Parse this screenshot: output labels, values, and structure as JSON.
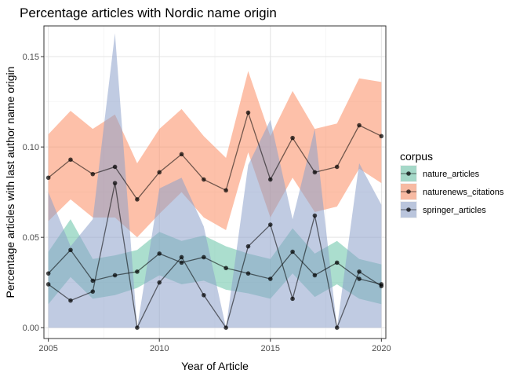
{
  "chart_data": {
    "type": "line",
    "title": "Percentage articles with Nordic name origin",
    "xlabel": "Year of Article",
    "ylabel": "Percentage articles with last author name origin",
    "xlim": [
      2004.8,
      2020.2
    ],
    "ylim": [
      -0.006,
      0.167
    ],
    "x_ticks": [
      2005,
      2010,
      2015,
      2020
    ],
    "x_tick_labels": [
      "2005",
      "2010",
      "2015",
      "2020"
    ],
    "y_ticks": [
      0.0,
      0.05,
      0.1,
      0.15
    ],
    "y_tick_labels": [
      "0.00",
      "0.05",
      "0.10",
      "0.15"
    ],
    "grid": true,
    "legend": {
      "title": "corpus",
      "position": "right"
    },
    "x": [
      2005,
      2006,
      2007,
      2008,
      2009,
      2010,
      2011,
      2012,
      2013,
      2014,
      2015,
      2016,
      2017,
      2018,
      2019,
      2020
    ],
    "series": [
      {
        "name": "nature_articles",
        "color": "#66c2a5",
        "values": [
          0.03,
          0.043,
          0.026,
          0.029,
          0.031,
          0.041,
          0.036,
          0.039,
          0.033,
          0.03,
          0.027,
          0.042,
          0.029,
          0.036,
          0.027,
          0.024
        ],
        "lower": [
          0.013,
          0.028,
          0.016,
          0.018,
          0.022,
          0.029,
          0.024,
          0.026,
          0.021,
          0.019,
          0.016,
          0.03,
          0.017,
          0.024,
          0.016,
          0.013
        ],
        "upper": [
          0.042,
          0.06,
          0.038,
          0.04,
          0.043,
          0.053,
          0.048,
          0.051,
          0.045,
          0.041,
          0.038,
          0.055,
          0.041,
          0.048,
          0.038,
          0.035
        ]
      },
      {
        "name": "naturenews_citations",
        "color": "#fc8d62",
        "values": [
          0.083,
          0.093,
          0.085,
          0.089,
          0.071,
          0.086,
          0.096,
          0.082,
          0.076,
          0.119,
          0.082,
          0.105,
          0.086,
          0.089,
          0.112,
          0.106
        ],
        "lower": [
          0.059,
          0.071,
          0.061,
          0.061,
          0.05,
          0.063,
          0.075,
          0.061,
          0.054,
          0.097,
          0.061,
          0.083,
          0.064,
          0.067,
          0.088,
          0.08
        ],
        "upper": [
          0.107,
          0.12,
          0.11,
          0.118,
          0.091,
          0.11,
          0.121,
          0.106,
          0.094,
          0.142,
          0.106,
          0.131,
          0.11,
          0.113,
          0.138,
          0.136
        ]
      },
      {
        "name": "springer_articles",
        "color": "#8da0cb",
        "values": [
          0.024,
          0.015,
          0.02,
          0.08,
          0.0,
          0.025,
          0.039,
          0.018,
          0.0,
          0.045,
          0.057,
          0.016,
          0.062,
          0.0,
          0.031,
          0.023
        ],
        "lower": [
          0.0,
          0.0,
          0.0,
          0.0,
          0.0,
          0.0,
          0.0,
          0.0,
          0.0,
          0.0,
          0.0,
          0.0,
          0.0,
          0.0,
          0.0,
          0.0
        ],
        "upper": [
          0.075,
          0.045,
          0.06,
          0.163,
          0.0,
          0.077,
          0.083,
          0.056,
          0.0,
          0.09,
          0.115,
          0.06,
          0.11,
          0.0,
          0.091,
          0.068
        ]
      }
    ]
  }
}
